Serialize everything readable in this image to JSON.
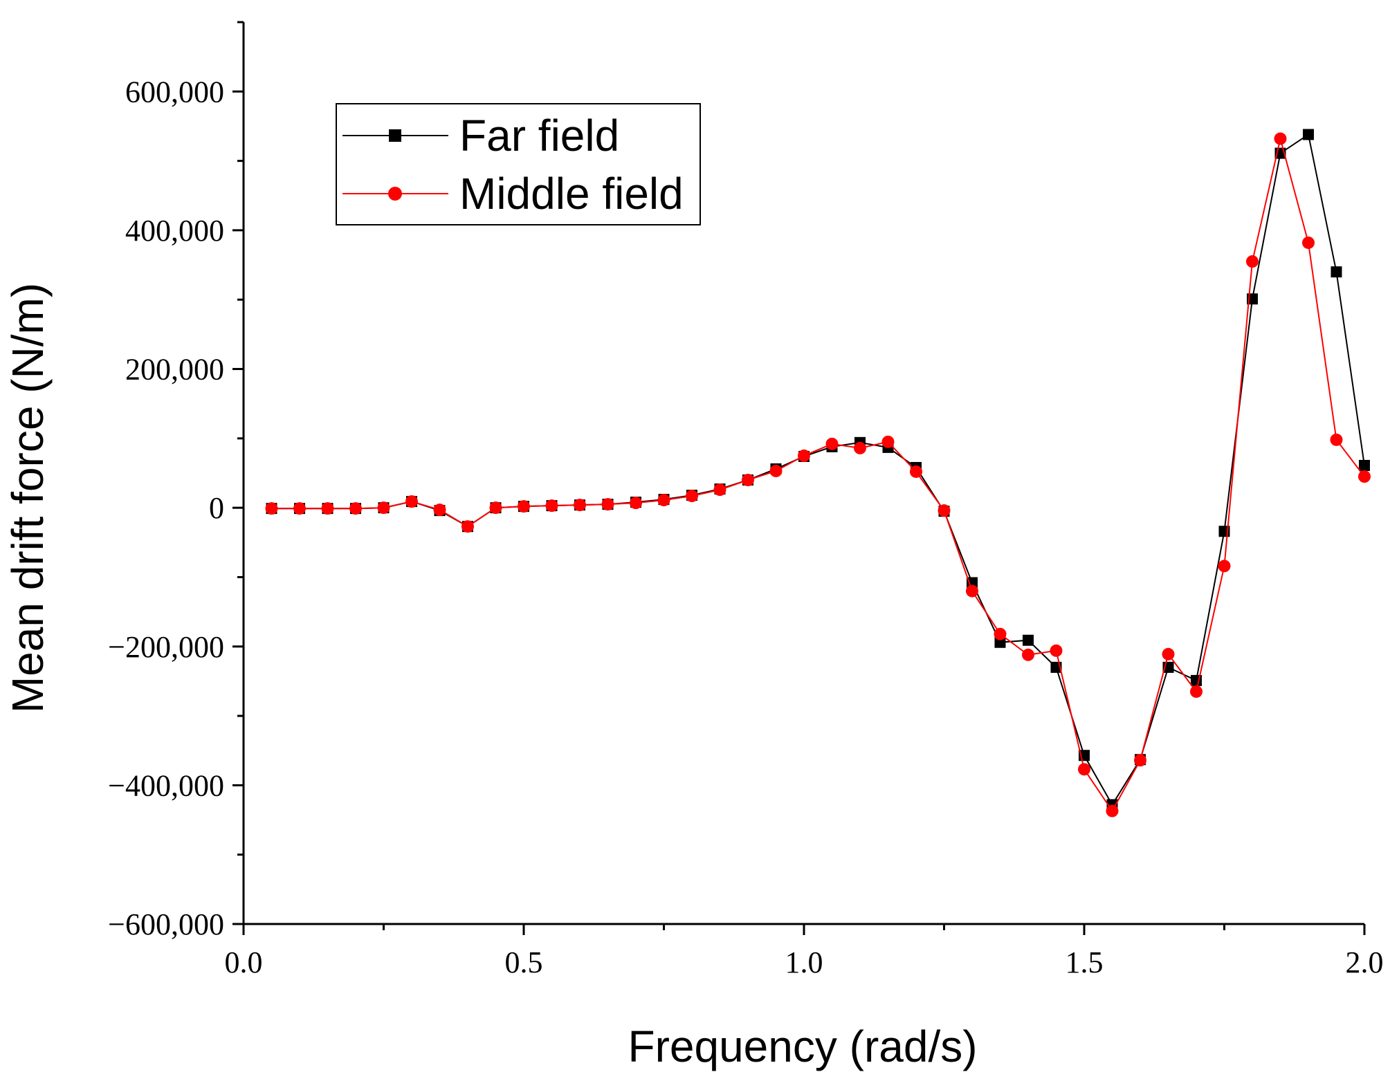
{
  "chart_data": {
    "type": "line",
    "title": "",
    "xlabel": "Frequency (rad/s)",
    "ylabel": "Mean drift force (N/m)",
    "xlim": [
      0.0,
      2.0
    ],
    "ylim": [
      -600000,
      700000
    ],
    "x_ticks": [
      0.0,
      0.5,
      1.0,
      1.5,
      2.0
    ],
    "x_tick_labels": [
      "0.0",
      "0.5",
      "1.0",
      "1.5",
      "2.0"
    ],
    "y_ticks": [
      -600000,
      -400000,
      -200000,
      0,
      200000,
      400000,
      600000
    ],
    "y_tick_labels": [
      "−600,000",
      "−400,000",
      "−200,000",
      "0",
      "200,000",
      "400,000",
      "600,000"
    ],
    "grid": false,
    "legend_position": "top-left",
    "x": [
      0.05,
      0.1,
      0.15,
      0.2,
      0.25,
      0.3,
      0.35,
      0.4,
      0.45,
      0.5,
      0.55,
      0.6,
      0.65,
      0.7,
      0.75,
      0.8,
      0.85,
      0.9,
      0.95,
      1.0,
      1.05,
      1.1,
      1.15,
      1.2,
      1.25,
      1.3,
      1.35,
      1.4,
      1.45,
      1.5,
      1.55,
      1.6,
      1.65,
      1.7,
      1.75,
      1.8,
      1.85,
      1.9,
      1.95,
      2.0
    ],
    "series": [
      {
        "name": "Far field",
        "color": "#000000",
        "marker": "square",
        "values": [
          -1000,
          -1000,
          -1000,
          -1000,
          0,
          9000,
          -4000,
          -27000,
          0,
          2000,
          3000,
          4000,
          5000,
          8000,
          12000,
          18000,
          27000,
          40000,
          56000,
          74000,
          88000,
          94000,
          87000,
          58000,
          -5000,
          -108000,
          -194000,
          -191000,
          -230000,
          -357000,
          -428000,
          -363000,
          -230000,
          -249000,
          -34000,
          301000,
          511000,
          538000,
          340000,
          61000
        ]
      },
      {
        "name": "Middle field",
        "color": "#ff0000",
        "marker": "circle",
        "values": [
          -1000,
          -1000,
          -1000,
          -1000,
          0,
          9000,
          -3000,
          -27000,
          0,
          2000,
          3000,
          4000,
          5000,
          7000,
          11000,
          17000,
          26000,
          40000,
          53000,
          75000,
          92000,
          86000,
          95000,
          52000,
          -4000,
          -120000,
          -182000,
          -212000,
          -206000,
          -377000,
          -437000,
          -364000,
          -211000,
          -265000,
          -84000,
          355000,
          532000,
          382000,
          98000,
          45000
        ]
      }
    ]
  }
}
